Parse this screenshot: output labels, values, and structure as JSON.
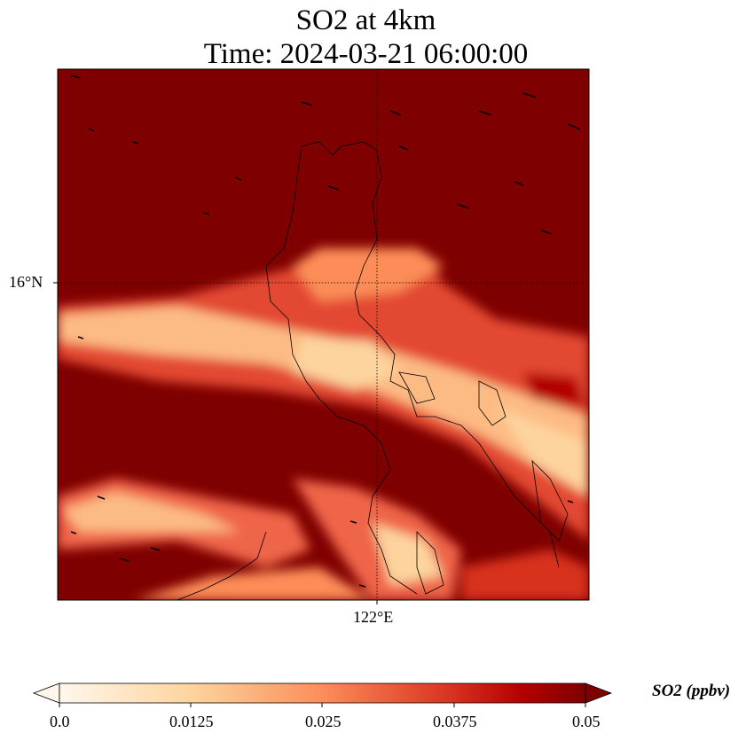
{
  "title": {
    "line1": "SO2 at 4km",
    "line2": "Time: 2024-03-21 06:00:00"
  },
  "map": {
    "lat_label": "16°N",
    "lon_label": "122°E",
    "background_color": "#7f0000"
  },
  "colorbar": {
    "label": "SO2 (ppbv)",
    "ticks": [
      "0.0",
      "0.0125",
      "0.025",
      "0.0375",
      "0.05"
    ],
    "range": [
      0.0,
      0.05
    ],
    "colormap": "OrRd",
    "extend": "both"
  }
}
